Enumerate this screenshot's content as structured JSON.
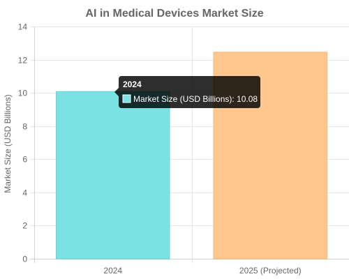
{
  "chart_data": {
    "type": "bar",
    "title": "AI in Medical Devices Market Size",
    "xlabel": "",
    "ylabel": "Market Size (USD Billions)",
    "categories": [
      "2024",
      "2025 (Projected)"
    ],
    "series": [
      {
        "name": "Market Size (USD Billions)",
        "values": [
          10.08,
          12.45
        ],
        "colors": [
          "#7ae2e2",
          "#ffc78e"
        ],
        "border_colors": [
          "#5cd6d6",
          "#ffb366"
        ]
      }
    ],
    "ylim": [
      0,
      14
    ],
    "yticks": [
      0,
      2,
      4,
      6,
      8,
      10,
      12,
      14
    ],
    "grid": true,
    "legend": "none"
  },
  "tooltip": {
    "title": "2024",
    "label": "Market Size (USD Billions): 10.08",
    "swatch_color": "#7ae2e2"
  }
}
